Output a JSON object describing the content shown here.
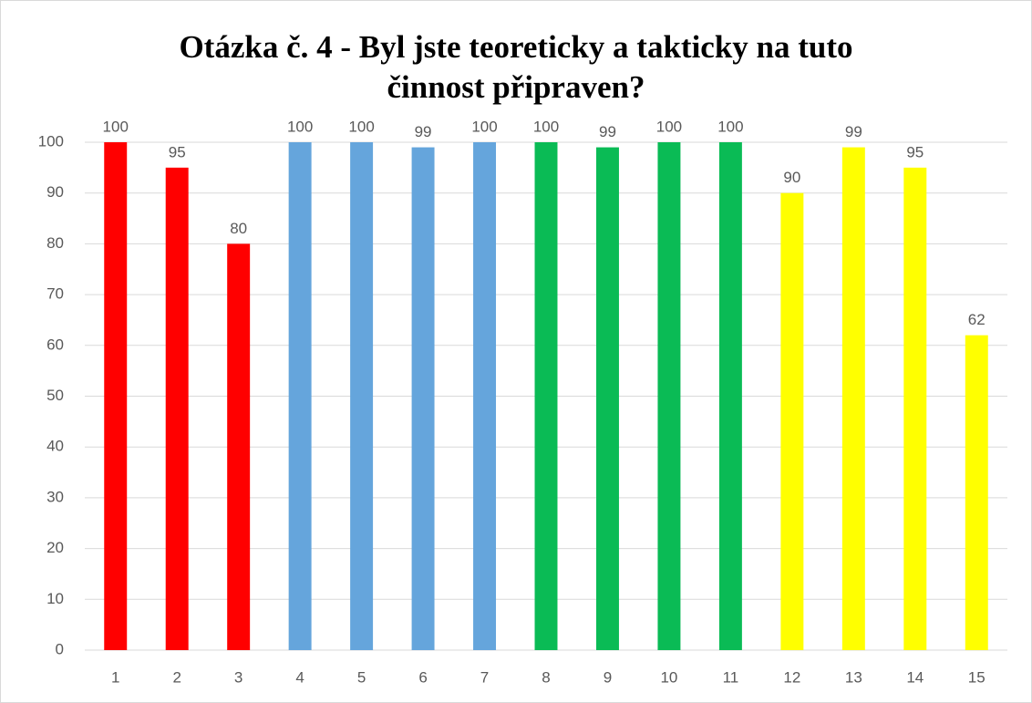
{
  "chart_data": {
    "type": "bar",
    "title": "Otázka č. 4 - Byl jste teoreticky a takticky na tuto činnost připraven?",
    "categories": [
      "1",
      "2",
      "3",
      "4",
      "5",
      "6",
      "7",
      "8",
      "9",
      "10",
      "11",
      "12",
      "13",
      "14",
      "15"
    ],
    "values": [
      100,
      95,
      80,
      100,
      100,
      99,
      100,
      100,
      99,
      100,
      100,
      90,
      99,
      95,
      62
    ],
    "colors": [
      "#ff0000",
      "#ff0000",
      "#ff0000",
      "#65a5dc",
      "#65a5dc",
      "#65a5dc",
      "#65a5dc",
      "#0abb55",
      "#0abb55",
      "#0abb55",
      "#0abb55",
      "#ffff00",
      "#ffff00",
      "#ffff00",
      "#ffff00"
    ],
    "ylim": [
      0,
      100
    ],
    "yticks": [
      0,
      10,
      20,
      30,
      40,
      50,
      60,
      70,
      80,
      90,
      100
    ],
    "grid": true
  }
}
